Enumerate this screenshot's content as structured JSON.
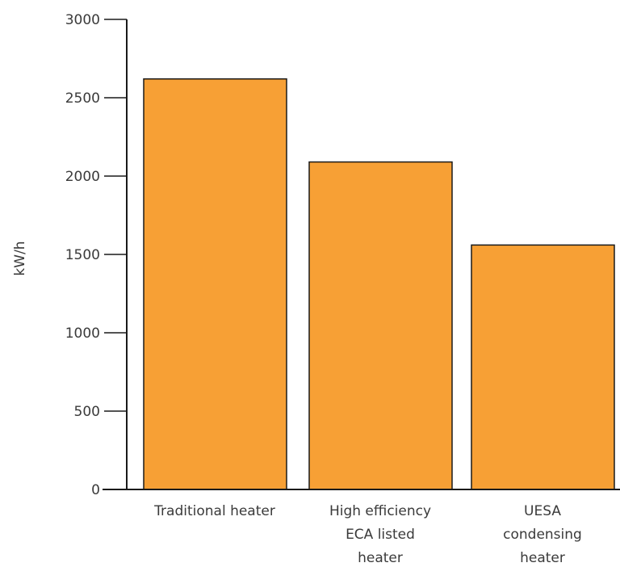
{
  "chart_data": {
    "type": "bar",
    "title": "",
    "xlabel": "",
    "ylabel": "kW/h",
    "ylim": [
      0,
      3000
    ],
    "yticks": [
      0,
      500,
      1000,
      1500,
      2000,
      2500,
      3000
    ],
    "grid": false,
    "categories": [
      [
        "Traditional heater"
      ],
      [
        "High efficiency",
        "ECA listed",
        "heater"
      ],
      [
        "UESA",
        "condensing",
        "heater"
      ]
    ],
    "values": [
      2620,
      2090,
      1560
    ],
    "colors": {
      "bar_fill": "#f7a035",
      "bar_stroke": "#1a1a1a",
      "axis": "#1a1a1a"
    }
  }
}
